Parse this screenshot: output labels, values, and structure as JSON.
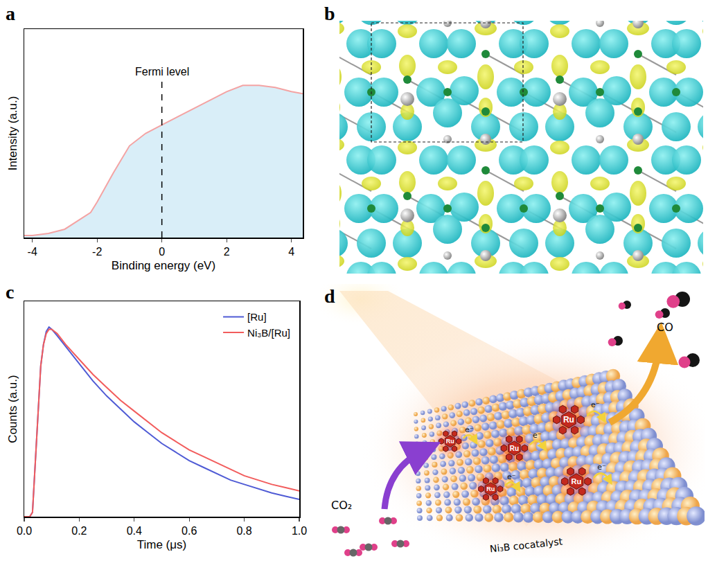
{
  "panel_labels": [
    "a",
    "b",
    "c",
    "d"
  ],
  "chart_data": [
    {
      "type": "area",
      "x_label": "Binding energy (eV)",
      "y_label": "Intensity (a.u.)",
      "x": [
        -4.25,
        -4,
        -3.5,
        -3,
        -2.5,
        -2.2,
        -2,
        -1.5,
        -1,
        -0.5,
        0,
        0.5,
        1,
        1.5,
        2,
        2.5,
        3,
        3.5,
        4,
        4.35
      ],
      "series": [
        {
          "color": "#f4a3a3",
          "values": [
            0.01,
            0.01,
            0.02,
            0.04,
            0.09,
            0.12,
            0.17,
            0.31,
            0.44,
            0.5,
            0.54,
            0.58,
            0.62,
            0.66,
            0.7,
            0.73,
            0.73,
            0.72,
            0.7,
            0.69
          ]
        }
      ],
      "xlim": [
        -4.25,
        4.35
      ],
      "xticks": [
        -4,
        -2,
        0,
        2,
        4
      ],
      "ylim": [
        0,
        1
      ],
      "tick_labels": "x",
      "annotations": [
        {
          "text": "Fermi level",
          "x": 0,
          "y": 0.76
        }
      ]
    },
    {
      "type": "line",
      "x_label": "Time (μs)",
      "y_label": "Counts (a.u.)",
      "x": [
        0,
        0.02,
        0.03,
        0.04,
        0.05,
        0.06,
        0.07,
        0.08,
        0.09,
        0.1,
        0.12,
        0.15,
        0.2,
        0.25,
        0.3,
        0.35,
        0.4,
        0.45,
        0.5,
        0.55,
        0.6,
        0.65,
        0.7,
        0.75,
        0.8,
        0.85,
        0.9,
        0.95,
        1.0
      ],
      "series": [
        {
          "name": "[Ru]",
          "color": "#4f5bd5",
          "values": [
            0,
            0,
            0.02,
            0.25,
            0.5,
            0.7,
            0.8,
            0.86,
            0.88,
            0.87,
            0.84,
            0.79,
            0.71,
            0.63,
            0.56,
            0.5,
            0.44,
            0.39,
            0.34,
            0.3,
            0.26,
            0.23,
            0.2,
            0.17,
            0.15,
            0.13,
            0.11,
            0.095,
            0.08
          ]
        },
        {
          "name": "Ni₃B/[Ru]",
          "color": "#f25c5c",
          "values": [
            0,
            0,
            0.02,
            0.25,
            0.5,
            0.7,
            0.8,
            0.85,
            0.87,
            0.87,
            0.85,
            0.8,
            0.73,
            0.66,
            0.6,
            0.54,
            0.49,
            0.44,
            0.39,
            0.35,
            0.31,
            0.28,
            0.25,
            0.22,
            0.19,
            0.17,
            0.15,
            0.135,
            0.12
          ]
        }
      ],
      "xlim": [
        0,
        1
      ],
      "xticks": [
        {
          "value": 0,
          "label": "0.0"
        },
        {
          "value": 0.2,
          "label": "0.2"
        },
        {
          "value": 0.4,
          "label": "0.4"
        },
        {
          "value": 0.6,
          "label": "0.6"
        },
        {
          "value": 0.8,
          "label": "0.8"
        },
        {
          "value": 1,
          "label": "1.0"
        }
      ],
      "ylim": [
        0,
        1
      ],
      "tick_labels": "x",
      "legend": "top right"
    }
  ],
  "diagram_d": {
    "reactant": "CO₂",
    "product": "CO",
    "cocatalyst": "Ni₃B cocatalyst",
    "complex_label": "Ru",
    "electron_label": "e⁻",
    "complex_count": 5
  }
}
